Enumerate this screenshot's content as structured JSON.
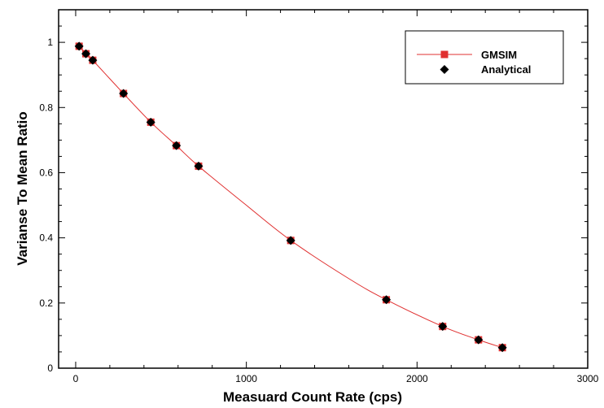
{
  "chart_data": {
    "type": "scatter",
    "title": "",
    "xlabel": "Measuard Count Rate (cps)",
    "ylabel": "Varianse To Mean Ratio",
    "xlim": [
      -100,
      3000
    ],
    "ylim": [
      0,
      1.1
    ],
    "x_ticks": [
      "0",
      "1000",
      "2000",
      "3000"
    ],
    "y_ticks": [
      "0",
      "0.2",
      "0.4",
      "0.6",
      "0.8",
      "1"
    ],
    "grid": false,
    "legend_position": "top-right",
    "series": [
      {
        "name": "GMSIM",
        "style": "line",
        "color": "#e03030",
        "marker": "square",
        "x": [
          20,
          60,
          100,
          280,
          440,
          590,
          720,
          1000,
          1260,
          1600,
          1820,
          2150,
          2360,
          2500
        ],
        "y": [
          0.988,
          0.965,
          0.945,
          0.843,
          0.755,
          0.683,
          0.62,
          0.5,
          0.392,
          0.275,
          0.21,
          0.128,
          0.087,
          0.063
        ]
      },
      {
        "name": "Analytical",
        "style": "markers",
        "color": "#000000",
        "marker": "diamond",
        "x": [
          20,
          60,
          100,
          280,
          440,
          590,
          720,
          1260,
          1820,
          2150,
          2360,
          2500
        ],
        "y": [
          0.988,
          0.965,
          0.945,
          0.843,
          0.755,
          0.683,
          0.62,
          0.392,
          0.21,
          0.128,
          0.087,
          0.063
        ]
      }
    ]
  }
}
